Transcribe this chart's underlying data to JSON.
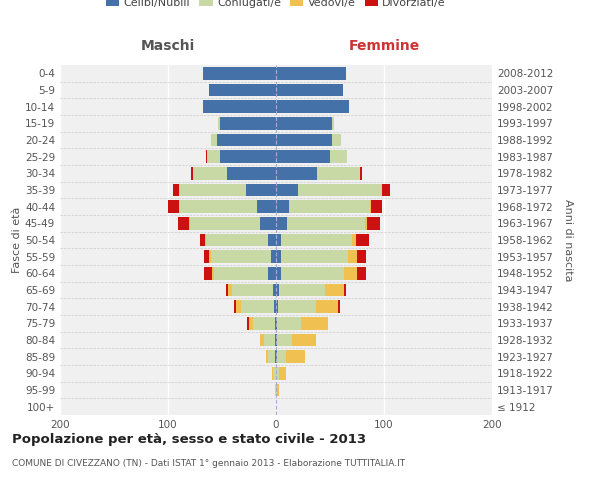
{
  "age_groups": [
    "100+",
    "95-99",
    "90-94",
    "85-89",
    "80-84",
    "75-79",
    "70-74",
    "65-69",
    "60-64",
    "55-59",
    "50-54",
    "45-49",
    "40-44",
    "35-39",
    "30-34",
    "25-29",
    "20-24",
    "15-19",
    "10-14",
    "5-9",
    "0-4"
  ],
  "birth_years": [
    "≤ 1912",
    "1913-1917",
    "1918-1922",
    "1923-1927",
    "1928-1932",
    "1933-1937",
    "1938-1942",
    "1943-1947",
    "1948-1952",
    "1953-1957",
    "1958-1962",
    "1963-1967",
    "1968-1972",
    "1973-1977",
    "1978-1982",
    "1983-1987",
    "1988-1992",
    "1993-1997",
    "1998-2002",
    "2003-2007",
    "2008-2012"
  ],
  "male": {
    "celibi": [
      0,
      0,
      0,
      1,
      1,
      1,
      2,
      3,
      7,
      5,
      7,
      15,
      18,
      28,
      45,
      52,
      55,
      52,
      68,
      62,
      68
    ],
    "coniugati": [
      0,
      1,
      3,
      6,
      10,
      20,
      30,
      38,
      50,
      55,
      58,
      65,
      72,
      62,
      32,
      12,
      5,
      2,
      0,
      0,
      0
    ],
    "vedovi": [
      0,
      0,
      1,
      2,
      4,
      4,
      5,
      3,
      2,
      2,
      1,
      1,
      0,
      0,
      0,
      0,
      0,
      0,
      0,
      0,
      0
    ],
    "divorziati": [
      0,
      0,
      0,
      0,
      0,
      2,
      2,
      2,
      8,
      5,
      4,
      10,
      10,
      5,
      2,
      1,
      0,
      0,
      0,
      0,
      0
    ]
  },
  "female": {
    "nubili": [
      0,
      0,
      0,
      1,
      1,
      1,
      2,
      3,
      5,
      5,
      5,
      10,
      12,
      20,
      38,
      50,
      52,
      52,
      68,
      62,
      65
    ],
    "coniugate": [
      0,
      1,
      3,
      8,
      14,
      22,
      35,
      42,
      58,
      62,
      65,
      72,
      75,
      78,
      40,
      16,
      8,
      2,
      0,
      0,
      0
    ],
    "vedove": [
      0,
      2,
      6,
      18,
      22,
      25,
      20,
      18,
      12,
      8,
      4,
      2,
      1,
      0,
      0,
      0,
      0,
      0,
      0,
      0,
      0
    ],
    "divorziate": [
      0,
      0,
      0,
      0,
      0,
      0,
      2,
      2,
      8,
      8,
      12,
      12,
      10,
      8,
      2,
      0,
      0,
      0,
      0,
      0,
      0
    ]
  },
  "colors": {
    "celibi": "#4472a8",
    "coniugati": "#c8d9a5",
    "vedovi": "#f0c050",
    "divorziati": "#cc1111"
  },
  "xlim": 200,
  "title": "Popolazione per età, sesso e stato civile - 2013",
  "subtitle": "COMUNE DI CIVEZZANO (TN) - Dati ISTAT 1° gennaio 2013 - Elaborazione TUTTITALIA.IT",
  "ylabel_left": "Fasce di età",
  "ylabel_right": "Anni di nascita",
  "xlabel_left": "Maschi",
  "xlabel_right": "Femmine",
  "legend_labels": [
    "Celibi/Nubili",
    "Coniugati/e",
    "Vedovi/e",
    "Divorziati/e"
  ],
  "bg_color": "#f0f0f0"
}
